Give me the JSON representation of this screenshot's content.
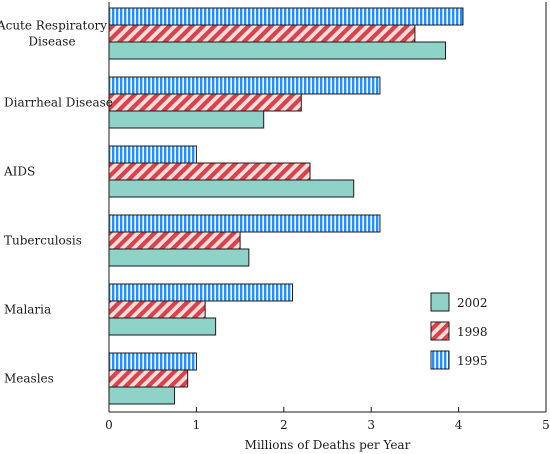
{
  "chart_data": {
    "type": "bar",
    "orientation": "horizontal",
    "categories": [
      [
        "Acute Respiratory",
        "Disease"
      ],
      [
        "Diarrheal Disease"
      ],
      [
        "AIDS"
      ],
      [
        "Tuberculosis"
      ],
      [
        "Malaria"
      ],
      [
        "Measles"
      ]
    ],
    "series": [
      {
        "name": "1995",
        "values": [
          4.05,
          3.1,
          1.0,
          3.1,
          2.1,
          1.0
        ],
        "color": "#1e90ff",
        "pattern": "vertical-stripes"
      },
      {
        "name": "1998",
        "values": [
          3.5,
          2.2,
          2.3,
          1.5,
          1.1,
          0.9
        ],
        "color": "#d8424a",
        "pattern": "diagonal-stripes"
      },
      {
        "name": "2002",
        "values": [
          3.85,
          1.77,
          2.8,
          1.6,
          1.22,
          0.75
        ],
        "color": "#8fd3c8",
        "pattern": "solid"
      }
    ],
    "legend_order": [
      "2002",
      "1998",
      "1995"
    ],
    "legend_position": "right",
    "xlabel": "Millions of Deaths per Year",
    "ylabel": "",
    "xlim": [
      0,
      5
    ],
    "xticks": [
      "0",
      "1",
      "2",
      "3",
      "4",
      "5"
    ],
    "grid": false
  }
}
